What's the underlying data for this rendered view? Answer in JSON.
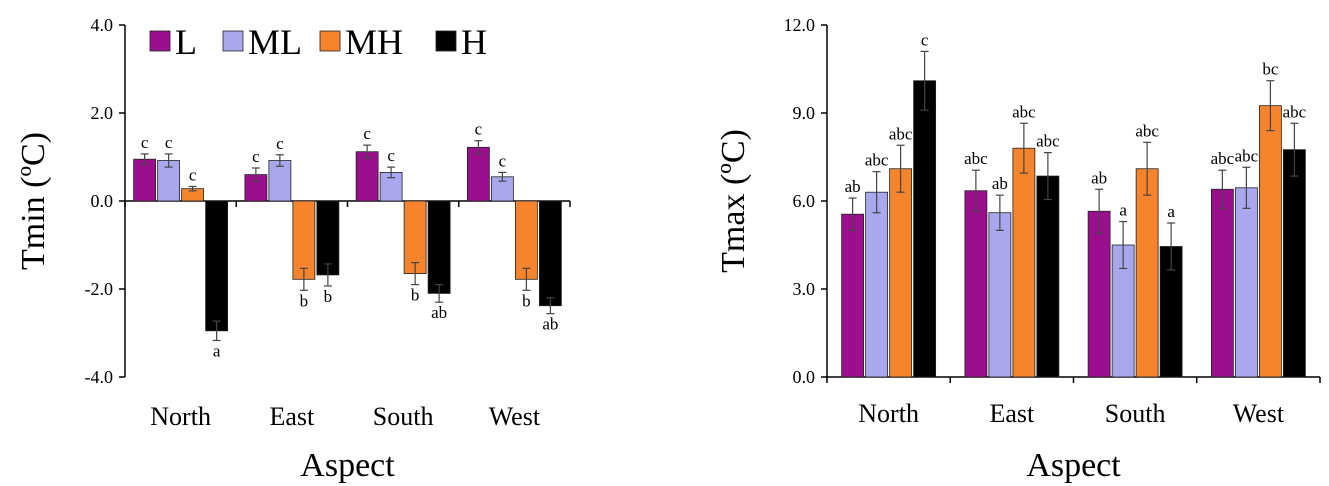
{
  "colors": {
    "L": "#9b0f8f",
    "ML": "#a9a8ee",
    "MH": "#f5842d",
    "H": "#000000"
  },
  "legend": [
    "L",
    "ML",
    "MH",
    "H"
  ],
  "chart_data": [
    {
      "type": "bar",
      "categories": [
        "North",
        "East",
        "South",
        "West"
      ],
      "xlabel": "Aspect",
      "ylabel": "Tmin (ºC)",
      "ylim": [
        -4.0,
        4.0
      ],
      "yticks": [
        "-4.0",
        "-2.0",
        "0.0",
        "2.0",
        "4.0"
      ],
      "ytick_values": [
        -4,
        -2,
        0,
        2,
        4
      ],
      "legend_position": "top",
      "series": [
        {
          "name": "L",
          "values": [
            0.95,
            0.6,
            1.12,
            1.22
          ],
          "errors": [
            0.12,
            0.15,
            0.15,
            0.15
          ],
          "labels": [
            "c",
            "c",
            "c",
            "c"
          ]
        },
        {
          "name": "ML",
          "values": [
            0.92,
            0.92,
            0.65,
            0.55
          ],
          "errors": [
            0.15,
            0.13,
            0.12,
            0.1
          ],
          "labels": [
            "c",
            "c",
            "c",
            "c"
          ]
        },
        {
          "name": "MH",
          "values": [
            0.28,
            -1.78,
            -1.65,
            -1.78
          ],
          "errors": [
            0.05,
            0.25,
            0.25,
            0.25
          ],
          "labels": [
            "c",
            "b",
            "b",
            "b"
          ]
        },
        {
          "name": "H",
          "values": [
            -2.95,
            -1.68,
            -2.1,
            -2.38
          ],
          "errors": [
            0.22,
            0.25,
            0.2,
            0.18
          ],
          "labels": [
            "a",
            "b",
            "ab",
            "ab"
          ]
        }
      ]
    },
    {
      "type": "bar",
      "categories": [
        "North",
        "East",
        "South",
        "West"
      ],
      "xlabel": "Aspect",
      "ylabel": "Tmax (ºC)",
      "ylim": [
        0.0,
        12.0
      ],
      "yticks": [
        "0.0",
        "3.0",
        "6.0",
        "9.0",
        "12.0"
      ],
      "ytick_values": [
        0,
        3,
        6,
        9,
        12
      ],
      "series": [
        {
          "name": "L",
          "values": [
            5.55,
            6.35,
            5.65,
            6.4
          ],
          "errors": [
            0.55,
            0.7,
            0.75,
            0.65
          ],
          "labels": [
            "ab",
            "abc",
            "ab",
            "abc"
          ]
        },
        {
          "name": "ML",
          "values": [
            6.3,
            5.6,
            4.5,
            6.45
          ],
          "errors": [
            0.7,
            0.6,
            0.8,
            0.7
          ],
          "labels": [
            "abc",
            "ab",
            "a",
            "abc"
          ]
        },
        {
          "name": "MH",
          "values": [
            7.1,
            7.8,
            7.1,
            9.25
          ],
          "errors": [
            0.8,
            0.85,
            0.9,
            0.85
          ],
          "labels": [
            "abc",
            "abc",
            "abc",
            "bc"
          ]
        },
        {
          "name": "H",
          "values": [
            10.1,
            6.85,
            4.45,
            7.75
          ],
          "errors": [
            1.0,
            0.8,
            0.8,
            0.9
          ],
          "labels": [
            "c",
            "abc",
            "a",
            "abc"
          ]
        }
      ]
    }
  ]
}
